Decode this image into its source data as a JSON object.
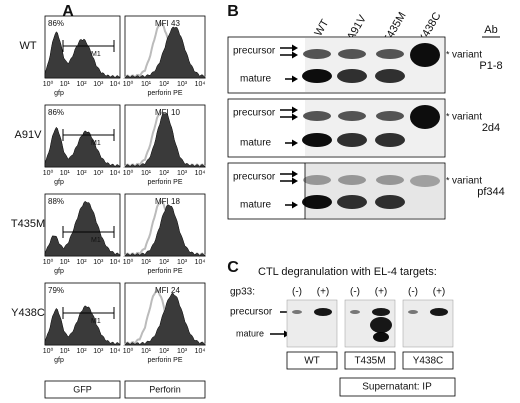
{
  "panel_a": {
    "label": "A",
    "x_ticks": [
      "10⁰",
      "10¹",
      "10²",
      "10³",
      "10⁴"
    ],
    "gfp_axis": "gfp",
    "perforin_axis": "perforin PE",
    "gate": "M1",
    "rows": [
      {
        "name": "WT",
        "percent": "86%",
        "mfi": "MFI 43"
      },
      {
        "name": "A91V",
        "percent": "86%",
        "mfi": "MFI 10"
      },
      {
        "name": "T435M",
        "percent": "88%",
        "mfi": "MFI 18"
      },
      {
        "name": "Y438C",
        "percent": "79%",
        "mfi": "MFI 24"
      }
    ],
    "footer": [
      "GFP",
      "Perforin"
    ]
  },
  "panel_b": {
    "label": "B",
    "lanes": [
      "WT",
      "A91V",
      "T435M",
      "Y438C"
    ],
    "ab_header": "Ab",
    "blots": [
      {
        "precursor": "precursor",
        "mature": "mature",
        "variant": "variant",
        "antibody": "P1-8"
      },
      {
        "precursor": "precursor",
        "mature": "mature",
        "variant": "variant",
        "antibody": "2d4"
      },
      {
        "precursor": "precursor",
        "mature": "mature",
        "variant": "variant",
        "antibody": "pf344"
      }
    ]
  },
  "panel_c": {
    "label": "C",
    "title": "CTL degranulation with EL-4 targets:",
    "gp33": "gp33:",
    "precursor": "precursor",
    "mature": "mature",
    "groups": [
      {
        "name": "WT",
        "minus": "(-)",
        "plus": "(+)"
      },
      {
        "name": "T435M",
        "minus": "(-)",
        "plus": "(+)"
      },
      {
        "name": "Y438C",
        "minus": "(-)",
        "plus": "(+)"
      }
    ],
    "footer": "Supernatant: IP"
  }
}
